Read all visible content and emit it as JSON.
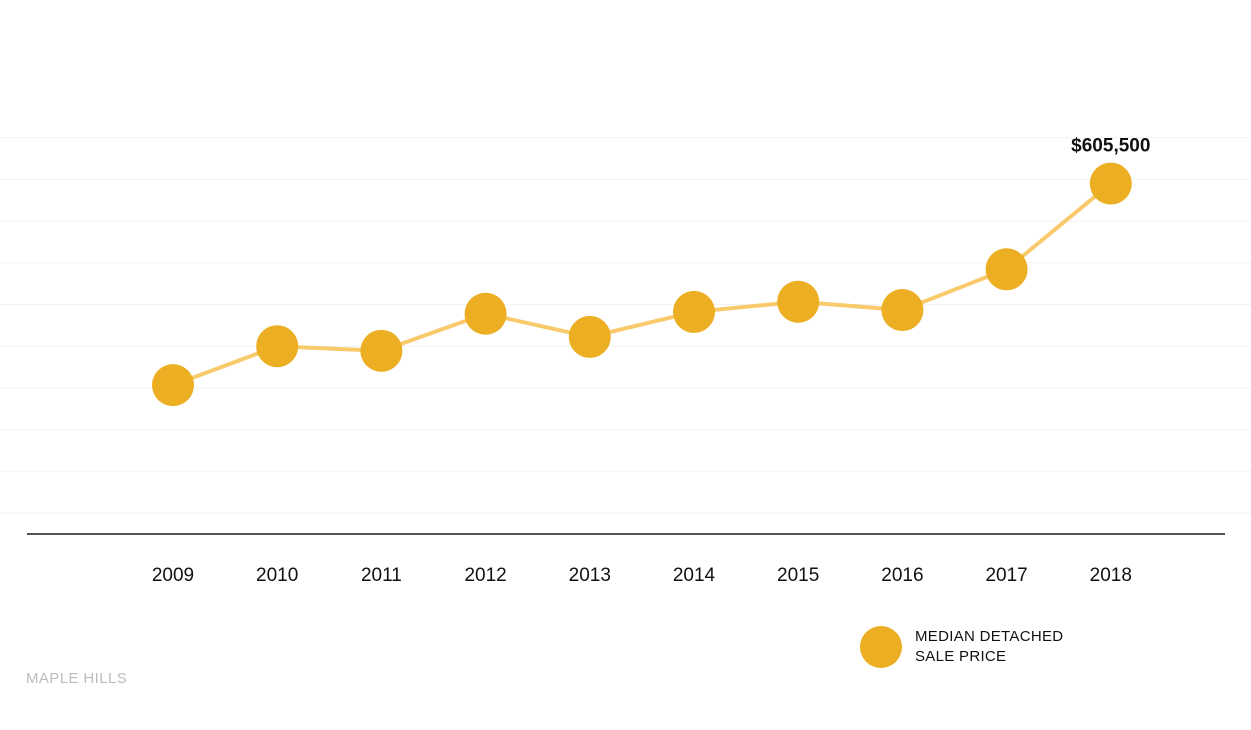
{
  "chart_data": {
    "type": "line",
    "categories": [
      "2009",
      "2010",
      "2011",
      "2012",
      "2013",
      "2014",
      "2015",
      "2016",
      "2017",
      "2018"
    ],
    "series": [
      {
        "name": "MEDIAN DETACHED SALE PRICE",
        "values": [
          388000,
          430000,
          425000,
          465000,
          440000,
          467000,
          478000,
          469000,
          513000,
          605500
        ]
      }
    ],
    "annotation": {
      "index": 9,
      "label": "$605,500"
    },
    "ylim": [
      250000,
      700000
    ],
    "grid": true,
    "legend": "bottom-right",
    "title": "",
    "xlabel": "",
    "ylabel": ""
  },
  "legend": {
    "line1": "MEDIAN DETACHED",
    "line2": "SALE PRICE"
  },
  "brand": "MAPLE HILLS",
  "colors": {
    "point": "#ECAE22",
    "line": "#F9CA6C",
    "grid": "#F2F2F2",
    "axis": "#1A1A1A",
    "brand_text": "#BDBDBD"
  }
}
